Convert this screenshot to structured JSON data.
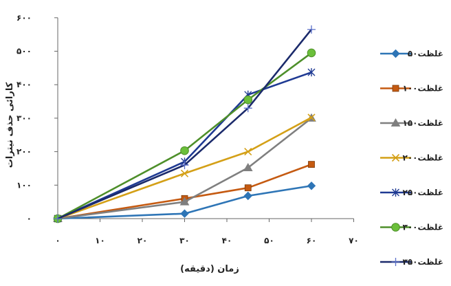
{
  "chart_data": {
    "type": "line",
    "xlabel": "زمان (دقیقه)",
    "ylabel": "کارائی حذف نیترات",
    "xlim": [
      0,
      70
    ],
    "ylim": [
      0,
      600
    ],
    "x_ticks": [
      0,
      10,
      20,
      30,
      40,
      50,
      60,
      70
    ],
    "x_tick_labels": [
      "۰",
      "۱۰",
      "۲۰",
      "۳۰",
      "۴۰",
      "۵۰",
      "۶۰",
      "۷۰"
    ],
    "y_ticks": [
      0,
      100,
      200,
      300,
      400,
      500,
      600
    ],
    "y_tick_labels": [
      "۰",
      "۱۰۰",
      "۲۰۰",
      "۳۰۰",
      "۴۰۰",
      "۵۰۰",
      "۶۰۰"
    ],
    "grid": false,
    "legend_position": "right",
    "series": [
      {
        "name": "غلظت۵۰",
        "color": "#2E75B6",
        "marker": "diamond",
        "x": [
          0,
          30,
          45,
          60
        ],
        "y": [
          0,
          15,
          68,
          98
        ]
      },
      {
        "name": "غلظت۱۰۰",
        "color": "#C55A11",
        "marker": "square",
        "x": [
          0,
          30,
          45,
          60
        ],
        "y": [
          0,
          60,
          92,
          162
        ]
      },
      {
        "name": "غلظت۱۵۰",
        "color": "#7F7F7F",
        "marker": "triangle",
        "x": [
          0,
          30,
          45,
          60
        ],
        "y": [
          0,
          50,
          152,
          300
        ]
      },
      {
        "name": "غلظت۲۰۰",
        "color": "#D4A017",
        "marker": "x",
        "x": [
          0,
          30,
          45,
          60
        ],
        "y": [
          0,
          135,
          200,
          302
        ]
      },
      {
        "name": "غلظت۲۵۰",
        "color": "#1F3A93",
        "marker": "star",
        "x": [
          0,
          30,
          45,
          60
        ],
        "y": [
          0,
          170,
          370,
          437
        ]
      },
      {
        "name": "غلظت۳۰۰",
        "color": "#4E8F2A",
        "marker": "circle",
        "x": [
          0,
          30,
          45,
          60
        ],
        "y": [
          0,
          203,
          355,
          495
        ]
      },
      {
        "name": "غلظت۳۵۰",
        "color": "#1B2A6B",
        "marker": "plus",
        "x": [
          0,
          30,
          45,
          60
        ],
        "y": [
          0,
          160,
          330,
          565
        ]
      }
    ]
  }
}
